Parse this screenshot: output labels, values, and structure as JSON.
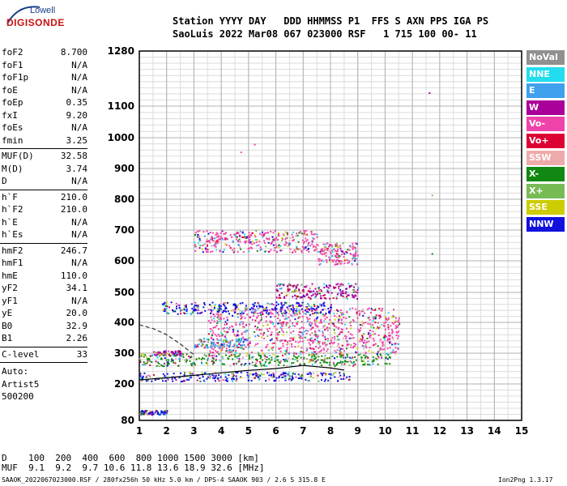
{
  "logo": {
    "brand": "Lowell",
    "product": "DIGISONDE"
  },
  "header": {
    "line1": "Station YYYY DAY   DDD HHMMSS P1  FFS S AXN PPS IGA PS",
    "line2": "SaoLuis 2022 Mar08 067 023000 RSF   1 715 100 00- 11"
  },
  "params": {
    "group1": [
      {
        "name": "foF2",
        "value": "8.700"
      },
      {
        "name": "foF1",
        "value": "N/A"
      },
      {
        "name": "foF1p",
        "value": "N/A"
      },
      {
        "name": "foE",
        "value": "N/A"
      },
      {
        "name": "foEp",
        "value": "0.35"
      },
      {
        "name": "fxI",
        "value": "9.20"
      },
      {
        "name": "foEs",
        "value": "N/A"
      },
      {
        "name": "fmin",
        "value": "3.25"
      }
    ],
    "group2": [
      {
        "name": "MUF(D)",
        "value": "32.58"
      },
      {
        "name": "M(D)",
        "value": "3.74"
      },
      {
        "name": "D",
        "value": "N/A"
      }
    ],
    "group3": [
      {
        "name": "h`F",
        "value": "210.0"
      },
      {
        "name": "h`F2",
        "value": "210.0"
      },
      {
        "name": "h`E",
        "value": "N/A"
      },
      {
        "name": "h`Es",
        "value": "N/A"
      }
    ],
    "group4": [
      {
        "name": "hmF2",
        "value": "246.7"
      },
      {
        "name": "hmF1",
        "value": "N/A"
      },
      {
        "name": "hmE",
        "value": "110.0"
      },
      {
        "name": "yF2",
        "value": "34.1"
      },
      {
        "name": "yF1",
        "value": "N/A"
      },
      {
        "name": "yE",
        "value": "20.0"
      },
      {
        "name": "B0",
        "value": "32.9"
      },
      {
        "name": "B1",
        "value": "2.26"
      }
    ],
    "clevel": {
      "name": "C-level",
      "value": "33"
    },
    "auto": [
      "Auto:",
      "Artist5",
      "500200"
    ]
  },
  "legend": [
    {
      "label": "NoVal",
      "color": "#909090"
    },
    {
      "label": "NNE",
      "color": "#22ddee"
    },
    {
      "label": "E",
      "color": "#3fa0ee"
    },
    {
      "label": "W",
      "color": "#aa0099"
    },
    {
      "label": "Vo-",
      "color": "#ee44aa"
    },
    {
      "label": "Vo+",
      "color": "#dd0033"
    },
    {
      "label": "SSW",
      "color": "#eeaaaa"
    },
    {
      "label": "X-",
      "color": "#118811"
    },
    {
      "label": "X+",
      "color": "#77bb55"
    },
    {
      "label": "SSE",
      "color": "#cccc00"
    },
    {
      "label": "NNW",
      "color": "#1111dd"
    }
  ],
  "chart_data": {
    "type": "scatter",
    "title": "",
    "xlabel": "",
    "ylabel": "",
    "xlim": [
      1,
      15
    ],
    "ylim": [
      80,
      1280
    ],
    "x_ticks": [
      "1",
      "2",
      "3",
      "4",
      "5",
      "6",
      "7",
      "8",
      "9",
      "10",
      "11",
      "12",
      "13",
      "14",
      "15"
    ],
    "y_ticks": [
      "80",
      "200",
      "300",
      "400",
      "500",
      "600",
      "700",
      "800",
      "900",
      "1000",
      "1100",
      "1280"
    ],
    "y_tick_values": [
      80,
      200,
      300,
      400,
      500,
      600,
      700,
      800,
      900,
      1000,
      1100,
      1280
    ],
    "grid": true,
    "traces": [
      {
        "name": "O trace",
        "x": [
          1.0,
          2.0,
          3.0,
          4.0,
          5.0,
          6.0,
          7.0,
          8.0,
          8.5
        ],
        "y": [
          213,
          220,
          228,
          236,
          244,
          250,
          260,
          252,
          245
        ]
      },
      {
        "name": "X trace",
        "x": [
          1.0,
          1.5,
          2.0,
          2.5,
          3.0
        ],
        "y": [
          392,
          380,
          360,
          330,
          295
        ]
      }
    ],
    "clusters": [
      {
        "x": [
          1.0,
          8.7
        ],
        "y": [
          210,
          240
        ],
        "dir": "NNW"
      },
      {
        "x": [
          1.0,
          10.2
        ],
        "y": [
          260,
          300
        ],
        "dir": "X-"
      },
      {
        "x": [
          3.5,
          10.5
        ],
        "y": [
          300,
          450
        ],
        "dir": "Vo-"
      },
      {
        "x": [
          1.8,
          8.0
        ],
        "y": [
          430,
          470
        ],
        "dir": "NNW"
      },
      {
        "x": [
          3.0,
          7.5
        ],
        "y": [
          630,
          700
        ],
        "dir": "Vo-"
      },
      {
        "x": [
          6.0,
          9.0
        ],
        "y": [
          480,
          530
        ],
        "dir": "W"
      },
      {
        "x": [
          7.5,
          9.0
        ],
        "y": [
          590,
          660
        ],
        "dir": "Vo-"
      },
      {
        "x": [
          1.0,
          2.0
        ],
        "y": [
          100,
          115
        ],
        "dir": "NNW"
      },
      {
        "x": [
          1.5,
          2.5
        ],
        "y": [
          295,
          310
        ],
        "dir": "W"
      },
      {
        "x": [
          3.0,
          5.0
        ],
        "y": [
          320,
          350
        ],
        "dir": "E"
      }
    ],
    "stray_points": [
      {
        "x": 11.6,
        "y": 1145,
        "dir": "W"
      },
      {
        "x": 11.7,
        "y": 815,
        "dir": "X+"
      },
      {
        "x": 11.7,
        "y": 625,
        "dir": "X-"
      },
      {
        "x": 4.7,
        "y": 955,
        "dir": "Vo-"
      },
      {
        "x": 5.2,
        "y": 980,
        "dir": "Vo-"
      }
    ]
  },
  "bottom": {
    "line1": "D    100  200  400  600  800 1000 1500 3000 [km]",
    "line2": "MUF  9.1  9.2  9.7 10.6 11.8 13.6 18.9 32.6 [MHz]"
  },
  "footer": {
    "left": "SAAOK_2022067023000.RSF / 280fx256h 50 kHz 5.0 km / DPS-4 SAAOK 903 / 2.6 S 315.8 E",
    "right": "Ion2Png 1.3.17"
  }
}
